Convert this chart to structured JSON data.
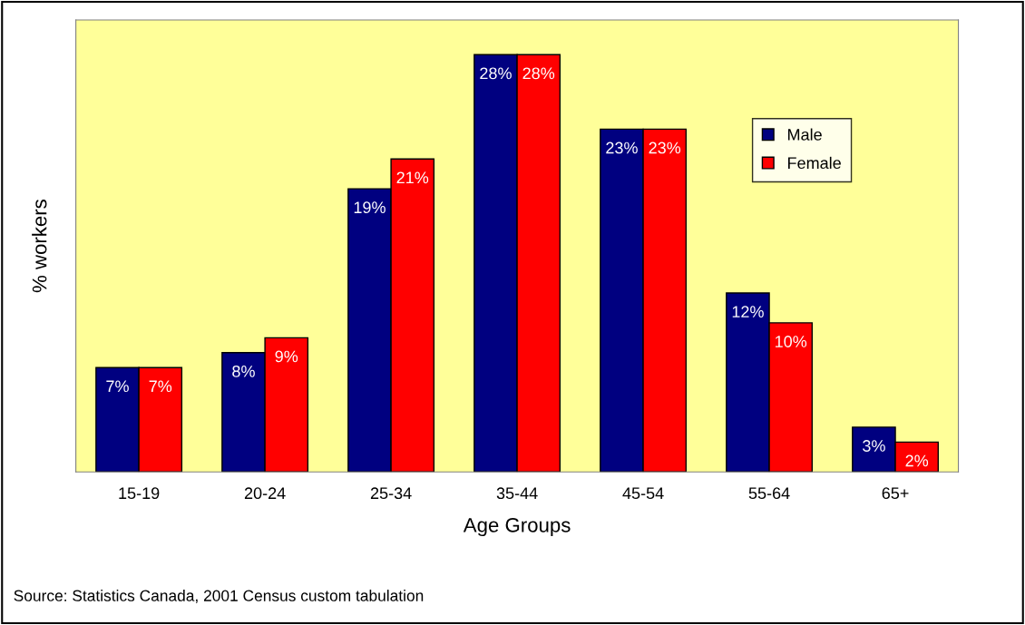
{
  "chart_data": {
    "type": "bar",
    "xlabel": "Age Groups",
    "ylabel": "% workers",
    "categories": [
      "15-19",
      "20-24",
      "25-34",
      "35-44",
      "45-54",
      "55-64",
      "65+"
    ],
    "series": [
      {
        "name": "Male",
        "color": "#000080",
        "values": [
          7,
          8,
          19,
          28,
          23,
          12,
          3
        ],
        "value_labels": [
          "7%",
          "8%",
          "19%",
          "28%",
          "23%",
          "12%",
          "3%"
        ]
      },
      {
        "name": "Female",
        "color": "#ff0000",
        "values": [
          7,
          9,
          21,
          28,
          23,
          10,
          2
        ],
        "value_labels": [
          "7%",
          "9%",
          "21%",
          "28%",
          "23%",
          "10%",
          "2%"
        ]
      }
    ],
    "annotations": [
      "Source: Statistics Canada, 2001 Census custom tabulation"
    ],
    "tick_labels": "x",
    "legend": "top right"
  }
}
